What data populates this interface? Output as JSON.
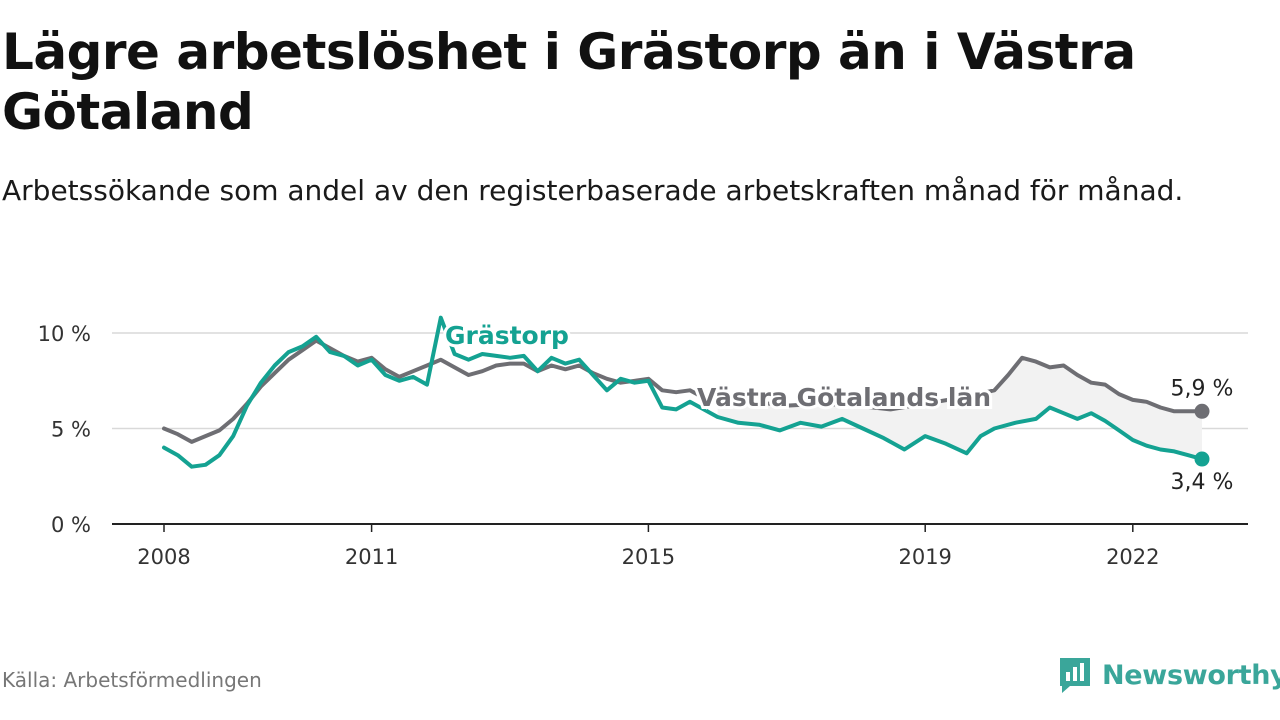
{
  "title": "Lägre arbetslöshet i Grästorp än i Västra Götaland",
  "subtitle": "Arbetssökande som andel av den registerbaserade arbetskraften månad för månad.",
  "source": "Källa: Arbetsförmedlingen",
  "brand": {
    "name": "Newsworthy",
    "color": "#3aa69a",
    "icon": "bar-chart-badge-icon"
  },
  "chart_data": {
    "type": "line",
    "xlabel": "",
    "ylabel": "",
    "x_range": [
      2008,
      2023.2
    ],
    "ylim": [
      0,
      10
    ],
    "y_ticks": [
      {
        "value": 0,
        "label": "0 %"
      },
      {
        "value": 5,
        "label": "5 %"
      },
      {
        "value": 10,
        "label": "10 %"
      }
    ],
    "x_ticks": [
      {
        "value": 2008,
        "label": "2008"
      },
      {
        "value": 2011,
        "label": "2011"
      },
      {
        "value": 2015,
        "label": "2015"
      },
      {
        "value": 2019,
        "label": "2019"
      },
      {
        "value": 2022,
        "label": "2022"
      }
    ],
    "grid": true,
    "band_fill": "#f2f2f2",
    "series": [
      {
        "name": "Västra Götalands län",
        "color": "#6e6e73",
        "end_label": "5,9 %",
        "points": [
          [
            2008.0,
            5.0
          ],
          [
            2008.2,
            4.7
          ],
          [
            2008.4,
            4.3
          ],
          [
            2008.6,
            4.6
          ],
          [
            2008.8,
            4.9
          ],
          [
            2009.0,
            5.5
          ],
          [
            2009.2,
            6.3
          ],
          [
            2009.4,
            7.2
          ],
          [
            2009.6,
            7.9
          ],
          [
            2009.8,
            8.6
          ],
          [
            2010.0,
            9.1
          ],
          [
            2010.2,
            9.6
          ],
          [
            2010.4,
            9.2
          ],
          [
            2010.6,
            8.8
          ],
          [
            2010.8,
            8.5
          ],
          [
            2011.0,
            8.7
          ],
          [
            2011.2,
            8.1
          ],
          [
            2011.4,
            7.7
          ],
          [
            2011.6,
            8.0
          ],
          [
            2011.8,
            8.3
          ],
          [
            2012.0,
            8.6
          ],
          [
            2012.2,
            8.2
          ],
          [
            2012.4,
            7.8
          ],
          [
            2012.6,
            8.0
          ],
          [
            2012.8,
            8.3
          ],
          [
            2013.0,
            8.4
          ],
          [
            2013.2,
            8.4
          ],
          [
            2013.4,
            8.0
          ],
          [
            2013.6,
            8.3
          ],
          [
            2013.8,
            8.1
          ],
          [
            2014.0,
            8.3
          ],
          [
            2014.2,
            7.9
          ],
          [
            2014.4,
            7.6
          ],
          [
            2014.6,
            7.4
          ],
          [
            2014.8,
            7.5
          ],
          [
            2015.0,
            7.6
          ],
          [
            2015.2,
            7.0
          ],
          [
            2015.4,
            6.9
          ],
          [
            2015.6,
            7.0
          ],
          [
            2015.8,
            6.6
          ],
          [
            2016.0,
            6.5
          ],
          [
            2016.5,
            6.4
          ],
          [
            2017.0,
            6.2
          ],
          [
            2017.5,
            6.3
          ],
          [
            2018.0,
            6.2
          ],
          [
            2018.5,
            6.0
          ],
          [
            2019.0,
            6.3
          ],
          [
            2019.5,
            6.6
          ],
          [
            2020.0,
            7.0
          ],
          [
            2020.2,
            7.8
          ],
          [
            2020.4,
            8.7
          ],
          [
            2020.6,
            8.5
          ],
          [
            2020.8,
            8.2
          ],
          [
            2021.0,
            8.3
          ],
          [
            2021.2,
            7.8
          ],
          [
            2021.4,
            7.4
          ],
          [
            2021.6,
            7.3
          ],
          [
            2021.8,
            6.8
          ],
          [
            2022.0,
            6.5
          ],
          [
            2022.2,
            6.4
          ],
          [
            2022.4,
            6.1
          ],
          [
            2022.6,
            5.9
          ],
          [
            2022.8,
            5.9
          ],
          [
            2023.0,
            5.9
          ]
        ]
      },
      {
        "name": "Grästorp",
        "color": "#14a292",
        "end_label": "3,4 %",
        "points": [
          [
            2008.0,
            4.0
          ],
          [
            2008.2,
            3.6
          ],
          [
            2008.4,
            3.0
          ],
          [
            2008.6,
            3.1
          ],
          [
            2008.8,
            3.6
          ],
          [
            2009.0,
            4.6
          ],
          [
            2009.2,
            6.2
          ],
          [
            2009.4,
            7.4
          ],
          [
            2009.6,
            8.3
          ],
          [
            2009.8,
            9.0
          ],
          [
            2010.0,
            9.3
          ],
          [
            2010.2,
            9.8
          ],
          [
            2010.4,
            9.0
          ],
          [
            2010.6,
            8.8
          ],
          [
            2010.8,
            8.3
          ],
          [
            2011.0,
            8.6
          ],
          [
            2011.2,
            7.8
          ],
          [
            2011.4,
            7.5
          ],
          [
            2011.6,
            7.7
          ],
          [
            2011.8,
            7.3
          ],
          [
            2012.0,
            10.8
          ],
          [
            2012.2,
            8.9
          ],
          [
            2012.4,
            8.6
          ],
          [
            2012.6,
            8.9
          ],
          [
            2012.8,
            8.8
          ],
          [
            2013.0,
            8.7
          ],
          [
            2013.2,
            8.8
          ],
          [
            2013.4,
            8.0
          ],
          [
            2013.6,
            8.7
          ],
          [
            2013.8,
            8.4
          ],
          [
            2014.0,
            8.6
          ],
          [
            2014.2,
            7.8
          ],
          [
            2014.4,
            7.0
          ],
          [
            2014.6,
            7.6
          ],
          [
            2014.8,
            7.4
          ],
          [
            2015.0,
            7.5
          ],
          [
            2015.2,
            6.1
          ],
          [
            2015.4,
            6.0
          ],
          [
            2015.6,
            6.4
          ],
          [
            2016.0,
            5.6
          ],
          [
            2016.3,
            5.3
          ],
          [
            2016.6,
            5.2
          ],
          [
            2016.9,
            4.9
          ],
          [
            2017.2,
            5.3
          ],
          [
            2017.5,
            5.1
          ],
          [
            2017.8,
            5.5
          ],
          [
            2018.1,
            5.0
          ],
          [
            2018.4,
            4.5
          ],
          [
            2018.7,
            3.9
          ],
          [
            2019.0,
            4.6
          ],
          [
            2019.3,
            4.2
          ],
          [
            2019.6,
            3.7
          ],
          [
            2019.8,
            4.6
          ],
          [
            2020.0,
            5.0
          ],
          [
            2020.3,
            5.3
          ],
          [
            2020.6,
            5.5
          ],
          [
            2020.8,
            6.1
          ],
          [
            2021.0,
            5.8
          ],
          [
            2021.2,
            5.5
          ],
          [
            2021.4,
            5.8
          ],
          [
            2021.6,
            5.4
          ],
          [
            2021.8,
            4.9
          ],
          [
            2022.0,
            4.4
          ],
          [
            2022.2,
            4.1
          ],
          [
            2022.4,
            3.9
          ],
          [
            2022.6,
            3.8
          ],
          [
            2022.8,
            3.6
          ],
          [
            2023.0,
            3.4
          ]
        ]
      }
    ]
  }
}
